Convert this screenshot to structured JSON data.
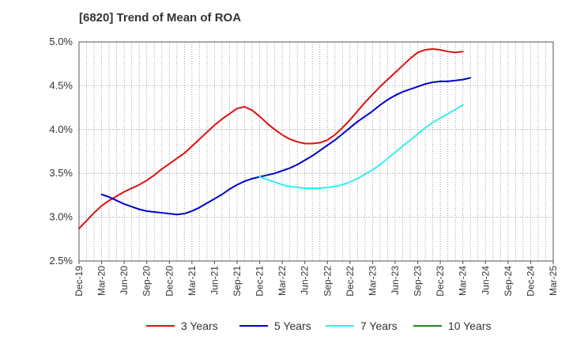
{
  "chart_data": {
    "type": "line",
    "title": "[6820]  Trend of Mean of ROA",
    "xlabel": "",
    "ylabel": "",
    "ylim": [
      2.5,
      5.0
    ],
    "yticks": [
      "2.5%",
      "3.0%",
      "3.5%",
      "4.0%",
      "4.5%",
      "5.0%"
    ],
    "ytick_values": [
      2.5,
      3.0,
      3.5,
      4.0,
      4.5,
      5.0
    ],
    "x_tick_labels": [
      "Dec-19",
      "Mar-20",
      "Jun-20",
      "Sep-20",
      "Dec-20",
      "Mar-21",
      "Jun-21",
      "Sep-21",
      "Dec-21",
      "Mar-22",
      "Jun-22",
      "Sep-22",
      "Dec-22",
      "Mar-23",
      "Jun-23",
      "Sep-23",
      "Dec-23",
      "Mar-24",
      "Jun-24",
      "Sep-24",
      "Dec-24",
      "Mar-25"
    ],
    "grid": true,
    "legend_position": "bottom",
    "series": [
      {
        "name": "3 Years",
        "color": "#dd1111",
        "start_index": 0,
        "values": [
          2.87,
          2.96,
          3.05,
          3.13,
          3.19,
          3.24,
          3.29,
          3.33,
          3.37,
          3.42,
          3.48,
          3.55,
          3.61,
          3.67,
          3.73,
          3.81,
          3.89,
          3.97,
          4.05,
          4.12,
          4.18,
          4.24,
          4.26,
          4.22,
          4.15,
          4.07,
          4.0,
          3.94,
          3.89,
          3.86,
          3.84,
          3.84,
          3.85,
          3.88,
          3.94,
          4.02,
          4.11,
          4.21,
          4.31,
          4.4,
          4.49,
          4.57,
          4.65,
          4.73,
          4.81,
          4.88,
          4.91,
          4.92,
          4.91,
          4.89,
          4.88,
          4.89
        ]
      },
      {
        "name": "5 Years",
        "color": "#0000cc",
        "start_index": 3,
        "values": [
          3.26,
          3.23,
          3.19,
          3.15,
          3.12,
          3.09,
          3.07,
          3.06,
          3.05,
          3.04,
          3.03,
          3.04,
          3.07,
          3.11,
          3.16,
          3.21,
          3.26,
          3.32,
          3.37,
          3.41,
          3.44,
          3.46,
          3.48,
          3.5,
          3.53,
          3.56,
          3.6,
          3.65,
          3.7,
          3.76,
          3.82,
          3.88,
          3.95,
          4.02,
          4.09,
          4.15,
          4.21,
          4.28,
          4.34,
          4.39,
          4.43,
          4.46,
          4.49,
          4.52,
          4.54,
          4.55,
          4.55,
          4.56,
          4.57,
          4.59
        ]
      },
      {
        "name": "7 Years",
        "color": "#33eeee",
        "start_index": 24,
        "values": [
          3.46,
          3.43,
          3.4,
          3.37,
          3.35,
          3.34,
          3.33,
          3.33,
          3.33,
          3.34,
          3.35,
          3.37,
          3.4,
          3.44,
          3.49,
          3.54,
          3.6,
          3.67,
          3.74,
          3.81,
          3.88,
          3.95,
          4.02,
          4.08,
          4.13,
          4.18,
          4.23,
          4.28
        ]
      },
      {
        "name": "10 Years",
        "color": "#228822",
        "start_index": 0,
        "values": []
      }
    ]
  }
}
